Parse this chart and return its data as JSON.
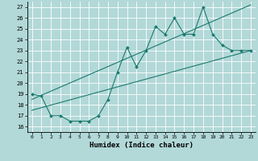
{
  "xlabel": "Humidex (Indice chaleur)",
  "bg_color": "#b2d8d8",
  "grid_color": "#ffffff",
  "line_color": "#1a7a6e",
  "xlim": [
    -0.5,
    23.5
  ],
  "ylim": [
    15.5,
    27.5
  ],
  "yticks": [
    16,
    17,
    18,
    19,
    20,
    21,
    22,
    23,
    24,
    25,
    26,
    27
  ],
  "xticks": [
    0,
    1,
    2,
    3,
    4,
    5,
    6,
    7,
    8,
    9,
    10,
    11,
    12,
    13,
    14,
    15,
    16,
    17,
    18,
    19,
    20,
    21,
    22,
    23
  ],
  "series1_x": [
    0,
    1,
    2,
    3,
    4,
    5,
    6,
    7,
    8,
    9,
    10,
    11,
    12,
    13,
    14,
    15,
    16,
    17,
    18,
    19,
    20,
    21,
    22,
    23
  ],
  "series1_y": [
    19.0,
    18.8,
    17.0,
    17.0,
    16.5,
    16.5,
    16.5,
    17.0,
    18.5,
    21.0,
    23.3,
    21.5,
    23.0,
    25.2,
    24.5,
    26.0,
    24.5,
    24.5,
    27.0,
    24.5,
    23.5,
    23.0,
    23.0,
    23.0
  ],
  "series2_x": [
    0,
    23
  ],
  "series2_y": [
    17.5,
    23.0
  ],
  "series3_x": [
    0,
    23
  ],
  "series3_y": [
    18.5,
    27.2
  ]
}
